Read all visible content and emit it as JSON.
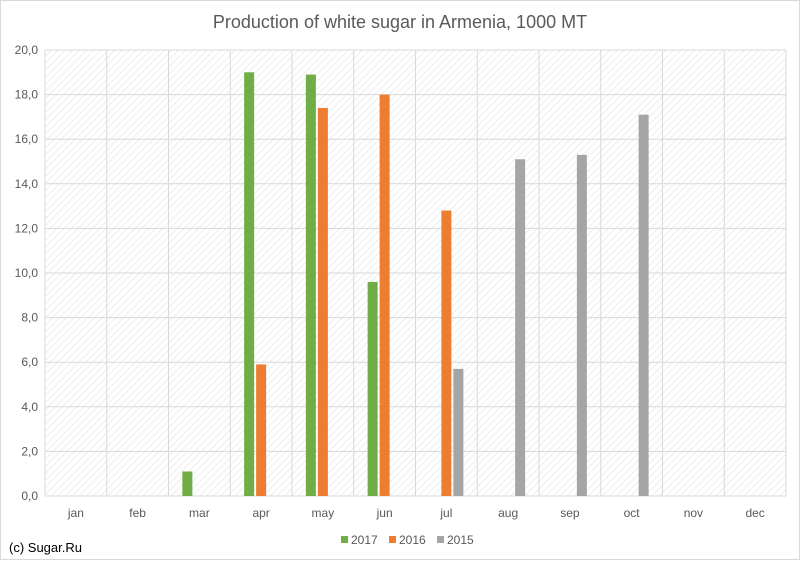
{
  "chart_data": {
    "type": "bar",
    "title": "Production of white sugar in Armenia, 1000 MT",
    "categories": [
      "jan",
      "feb",
      "mar",
      "apr",
      "may",
      "jun",
      "jul",
      "aug",
      "sep",
      "oct",
      "nov",
      "dec"
    ],
    "series": [
      {
        "name": "2017",
        "color": "#70ad47",
        "values": [
          0,
          0,
          1.1,
          19.0,
          18.9,
          9.6,
          0,
          0,
          0,
          0,
          0,
          0
        ]
      },
      {
        "name": "2016",
        "color": "#ed7d31",
        "values": [
          0,
          0,
          0,
          5.9,
          17.4,
          18.0,
          12.8,
          0,
          0,
          0,
          0,
          0
        ]
      },
      {
        "name": "2015",
        "color": "#a5a5a5",
        "values": [
          0,
          0,
          0,
          0,
          0,
          0,
          5.7,
          15.1,
          15.3,
          17.1,
          0,
          0
        ]
      }
    ],
    "ylim": [
      0,
      20
    ],
    "yticks": [
      "0,0",
      "2,0",
      "4,0",
      "6,0",
      "8,0",
      "10,0",
      "12,0",
      "14,0",
      "16,0",
      "18,0",
      "20,0"
    ],
    "xlabel": "",
    "ylabel": "",
    "grid": true,
    "legend_position": "bottom"
  },
  "credit": "(c) Sugar.Ru"
}
